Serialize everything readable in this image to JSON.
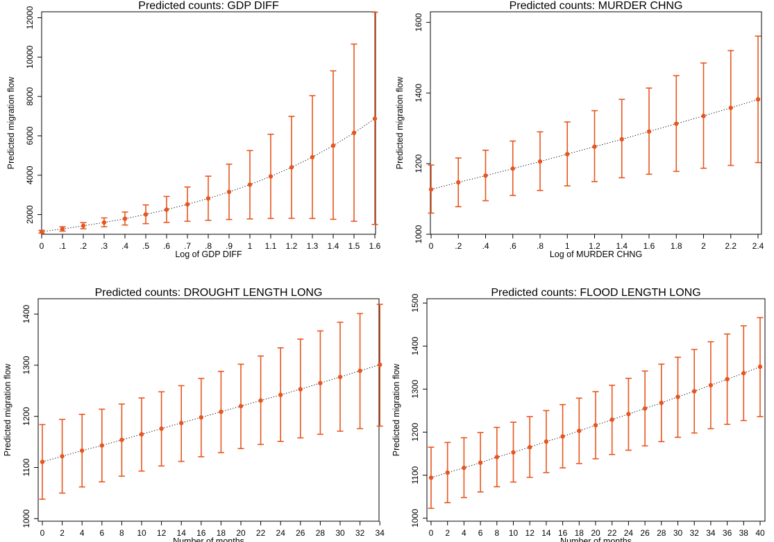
{
  "chart_data": [
    {
      "type": "scatter",
      "title": "Predicted counts: GDP DIFF",
      "xlabel": "Log of GDP DIFF",
      "ylabel": "Predicted migration flow",
      "xlim": [
        0,
        1.6
      ],
      "ylim": [
        1000,
        12300
      ],
      "xticks": [
        0,
        0.1,
        0.2,
        0.3,
        0.4,
        0.5,
        0.6,
        0.7,
        0.8,
        0.9,
        1,
        1.1,
        1.2,
        1.3,
        1.4,
        1.5,
        1.6
      ],
      "xtick_labels": [
        "0",
        ".1",
        ".2",
        ".3",
        ".4",
        ".5",
        ".6",
        ".7",
        ".8",
        ".9",
        "1",
        "1.1",
        "1.2",
        "1.3",
        "1.4",
        "1.5",
        "1.6"
      ],
      "yticks": [
        2000,
        4000,
        6000,
        8000,
        10000,
        12000
      ],
      "ytick_labels": [
        "2000",
        "4000",
        "6000",
        "8000",
        "10000",
        "12000"
      ],
      "grid": false,
      "series": [
        {
          "x": [
            0,
            0.1,
            0.2,
            0.3,
            0.4,
            0.5,
            0.6,
            0.7,
            0.8,
            0.9,
            1,
            1.1,
            1.2,
            1.3,
            1.4,
            1.5,
            1.6
          ],
          "y": [
            1130,
            1270,
            1430,
            1600,
            1790,
            2010,
            2250,
            2520,
            2820,
            3150,
            3520,
            3940,
            4400,
            4920,
            5500,
            6150,
            6870
          ],
          "lower": [
            1060,
            1160,
            1280,
            1380,
            1470,
            1540,
            1600,
            1660,
            1710,
            1750,
            1780,
            1800,
            1810,
            1800,
            1760,
            1660,
            1500
          ],
          "upper": [
            1200,
            1380,
            1590,
            1830,
            2130,
            2490,
            2920,
            3400,
            3950,
            4560,
            5250,
            6080,
            6990,
            8040,
            9300,
            10660,
            12280
          ]
        }
      ]
    },
    {
      "type": "scatter",
      "title": "Predicted counts: MURDER CHNG",
      "xlabel": "Log of MURDER CHNG",
      "ylabel": "Predicted migration flow",
      "xlim": [
        0,
        2.4
      ],
      "ylim": [
        1000,
        1630
      ],
      "xticks": [
        0,
        0.2,
        0.4,
        0.6,
        0.8,
        1,
        1.2,
        1.4,
        1.6,
        1.8,
        2,
        2.2,
        2.4
      ],
      "xtick_labels": [
        "0",
        ".2",
        ".4",
        ".6",
        ".8",
        "1",
        "1.2",
        "1.4",
        "1.6",
        "1.8",
        "2",
        "2.2",
        "2.4"
      ],
      "yticks": [
        1000,
        1200,
        1400,
        1600
      ],
      "ytick_labels": [
        "1000",
        "1200",
        "1400",
        "1600"
      ],
      "grid": false,
      "series": [
        {
          "x": [
            0,
            0.2,
            0.4,
            0.6,
            0.8,
            1,
            1.2,
            1.4,
            1.6,
            1.8,
            2,
            2.2,
            2.4
          ],
          "y": [
            1127,
            1147,
            1166,
            1186,
            1206,
            1227,
            1248,
            1269,
            1291,
            1313,
            1335,
            1358,
            1382
          ],
          "lower": [
            1060,
            1078,
            1095,
            1110,
            1124,
            1137,
            1149,
            1160,
            1170,
            1178,
            1187,
            1195,
            1203
          ],
          "upper": [
            1196,
            1216,
            1238,
            1264,
            1290,
            1318,
            1350,
            1382,
            1414,
            1449,
            1485,
            1520,
            1561
          ]
        }
      ]
    },
    {
      "type": "scatter",
      "title": "Predicted counts: DROUGHT LENGTH LONG",
      "xlabel": "Number of months",
      "ylabel": "Predicted migration flow",
      "xlim": [
        0,
        34
      ],
      "ylim": [
        995,
        1430
      ],
      "xticks": [
        0,
        2,
        4,
        6,
        8,
        10,
        12,
        14,
        16,
        18,
        20,
        22,
        24,
        26,
        28,
        30,
        32,
        34
      ],
      "xtick_labels": [
        "0",
        "2",
        "4",
        "6",
        "8",
        "10",
        "12",
        "14",
        "16",
        "18",
        "20",
        "22",
        "24",
        "26",
        "28",
        "30",
        "32",
        "34"
      ],
      "yticks": [
        1000,
        1100,
        1200,
        1300,
        1400
      ],
      "ytick_labels": [
        "1000",
        "1100",
        "1200",
        "1300",
        "1400"
      ],
      "grid": false,
      "series": [
        {
          "x": [
            0,
            2,
            4,
            6,
            8,
            10,
            12,
            14,
            16,
            18,
            20,
            22,
            24,
            26,
            28,
            30,
            32,
            34
          ],
          "y": [
            1111,
            1122,
            1133,
            1143,
            1154,
            1165,
            1176,
            1187,
            1198,
            1209,
            1220,
            1231,
            1242,
            1253,
            1265,
            1277,
            1289,
            1301
          ],
          "lower": [
            1038,
            1050,
            1062,
            1072,
            1083,
            1093,
            1103,
            1112,
            1121,
            1129,
            1137,
            1145,
            1151,
            1158,
            1165,
            1171,
            1176,
            1181
          ],
          "upper": [
            1184,
            1194,
            1204,
            1214,
            1224,
            1236,
            1248,
            1260,
            1274,
            1288,
            1302,
            1318,
            1334,
            1351,
            1367,
            1384,
            1401,
            1419
          ]
        }
      ]
    },
    {
      "type": "scatter",
      "title": "Predicted counts: FLOOD LENGTH LONG",
      "xlabel": "Number of months",
      "ylabel": "Predicted migration flow",
      "xlim": [
        0,
        40
      ],
      "ylim": [
        993,
        1510
      ],
      "xticks": [
        0,
        2,
        4,
        6,
        8,
        10,
        12,
        14,
        16,
        18,
        20,
        22,
        24,
        26,
        28,
        30,
        32,
        34,
        36,
        38,
        40
      ],
      "xtick_labels": [
        "0",
        "2",
        "4",
        "6",
        "8",
        "10",
        "12",
        "14",
        "16",
        "18",
        "20",
        "22",
        "24",
        "26",
        "28",
        "30",
        "32",
        "34",
        "36",
        "38",
        "40"
      ],
      "yticks": [
        1000,
        1100,
        1200,
        1300,
        1400,
        1500
      ],
      "ytick_labels": [
        "1000",
        "1100",
        "1200",
        "1300",
        "1400",
        "1500"
      ],
      "grid": false,
      "series": [
        {
          "x": [
            0,
            2,
            4,
            6,
            8,
            10,
            12,
            14,
            16,
            18,
            20,
            22,
            24,
            26,
            28,
            30,
            32,
            34,
            36,
            38,
            40
          ],
          "y": [
            1094,
            1106,
            1117,
            1129,
            1142,
            1153,
            1165,
            1178,
            1190,
            1203,
            1216,
            1229,
            1242,
            1255,
            1268,
            1282,
            1295,
            1309,
            1323,
            1337,
            1352
          ],
          "lower": [
            1023,
            1036,
            1048,
            1061,
            1073,
            1084,
            1095,
            1106,
            1117,
            1127,
            1138,
            1148,
            1158,
            1168,
            1178,
            1188,
            1198,
            1208,
            1218,
            1227,
            1236
          ],
          "upper": [
            1165,
            1176,
            1187,
            1199,
            1211,
            1223,
            1236,
            1250,
            1264,
            1279,
            1294,
            1309,
            1325,
            1342,
            1358,
            1374,
            1392,
            1410,
            1428,
            1447,
            1466
          ]
        }
      ]
    }
  ],
  "colors": {
    "marker": "#e8551e",
    "errorbar": "#e8551e",
    "trendline": "#000000",
    "axis": "#000000"
  }
}
